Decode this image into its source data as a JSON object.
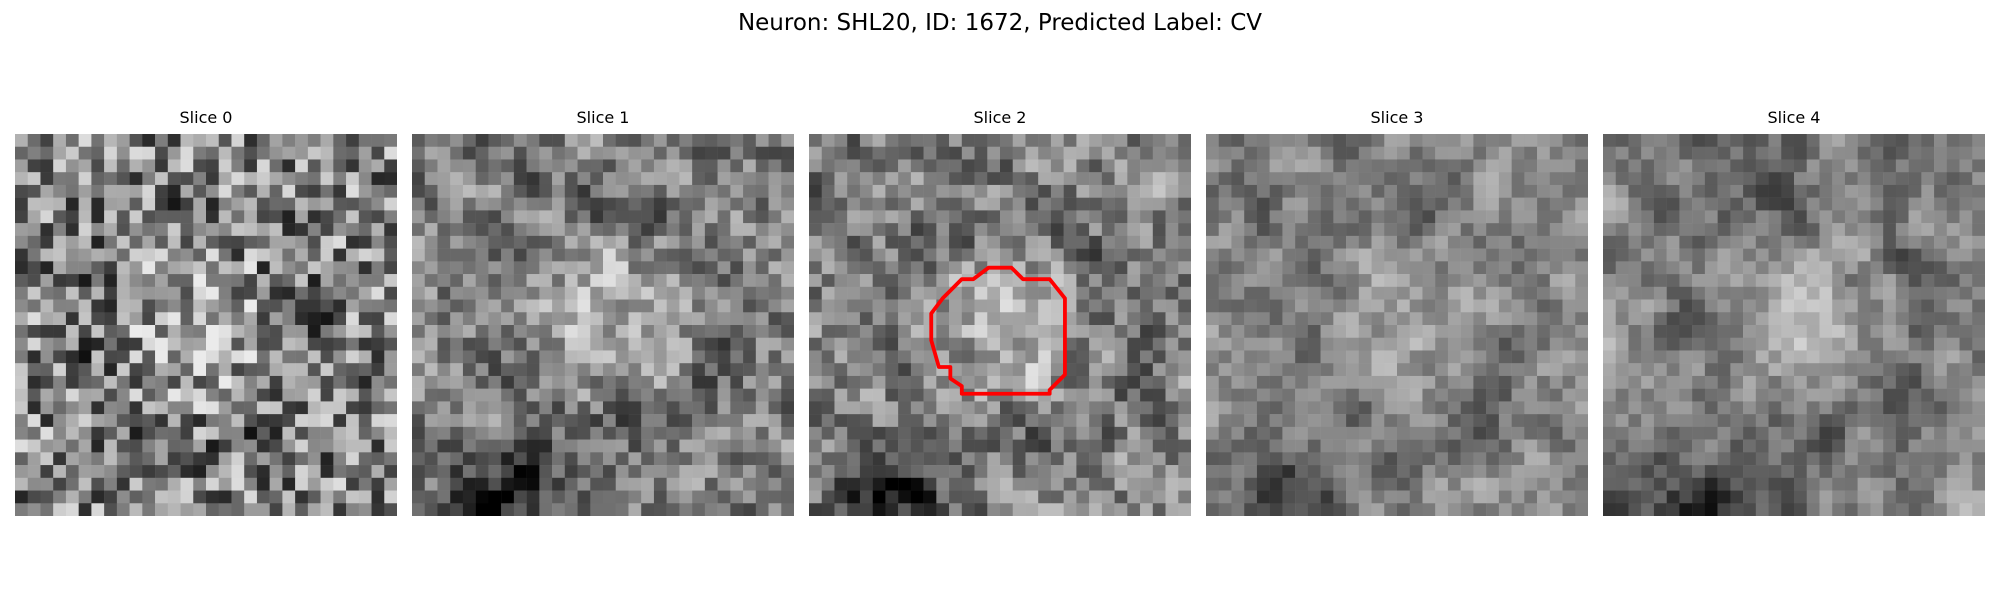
{
  "figure": {
    "title": "Neuron: SHL20, ID: 1672, Predicted Label: CV"
  },
  "panels": [
    {
      "title": "Slice 0",
      "seed": 11,
      "texture": "noisy",
      "bright_center": [
        0.48,
        0.52
      ],
      "dark_blob": null
    },
    {
      "title": "Slice 1",
      "seed": 23,
      "texture": "blob",
      "bright_center": [
        0.52,
        0.48
      ],
      "dark_blob": [
        0.25,
        0.95
      ]
    },
    {
      "title": "Slice 2",
      "seed": 37,
      "texture": "blob",
      "bright_center": [
        0.52,
        0.52
      ],
      "dark_blob": [
        0.22,
        0.97
      ]
    },
    {
      "title": "Slice 3",
      "seed": 41,
      "texture": "smooth",
      "bright_center": [
        0.55,
        0.5
      ],
      "dark_blob": [
        0.22,
        0.97
      ]
    },
    {
      "title": "Slice 4",
      "seed": 53,
      "texture": "smooth",
      "bright_center": [
        0.52,
        0.48
      ],
      "dark_blob": [
        0.25,
        0.98
      ]
    }
  ],
  "overlay": {
    "panel_index": 2,
    "color": "#ff0000",
    "outline": [
      [
        0.47,
        0.35
      ],
      [
        0.53,
        0.35
      ],
      [
        0.56,
        0.38
      ],
      [
        0.63,
        0.38
      ],
      [
        0.67,
        0.43
      ],
      [
        0.67,
        0.63
      ],
      [
        0.63,
        0.67
      ],
      [
        0.63,
        0.68
      ],
      [
        0.6,
        0.68
      ],
      [
        0.4,
        0.68
      ],
      [
        0.4,
        0.66
      ],
      [
        0.37,
        0.64
      ],
      [
        0.37,
        0.61
      ],
      [
        0.34,
        0.61
      ],
      [
        0.32,
        0.54
      ],
      [
        0.32,
        0.47
      ],
      [
        0.35,
        0.43
      ],
      [
        0.37,
        0.41
      ],
      [
        0.4,
        0.38
      ],
      [
        0.43,
        0.38
      ]
    ]
  }
}
